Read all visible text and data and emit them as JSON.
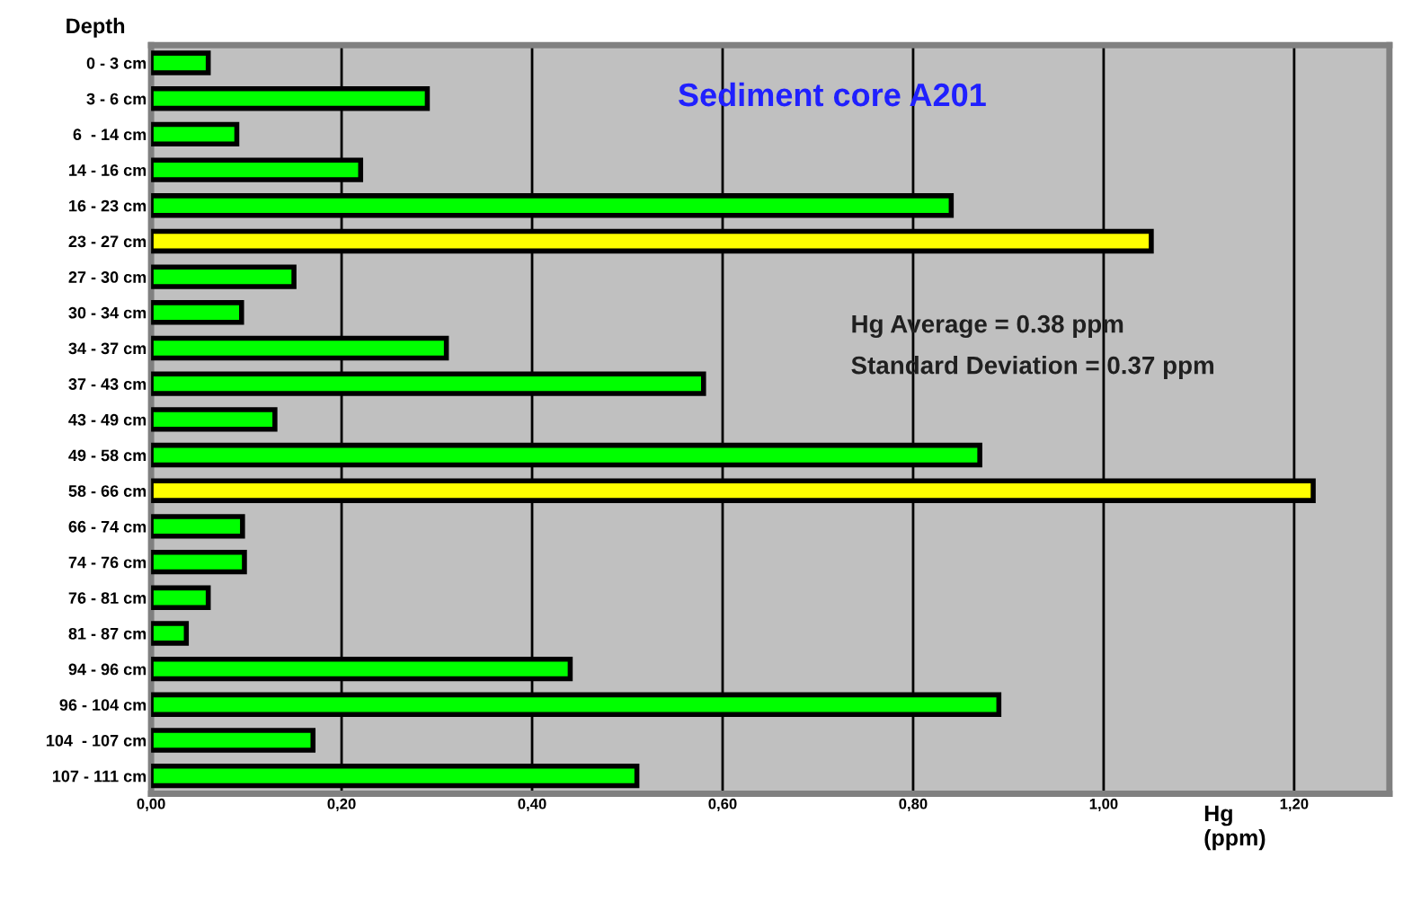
{
  "chart_data": {
    "type": "bar",
    "orientation": "horizontal",
    "title": "Sediment core A201",
    "ylabel": "Depth",
    "xlabel": "Hg\n(ppm)",
    "categories": [
      "0 - 3 cm",
      "3 - 6 cm",
      "6  - 14 cm",
      "14 - 16 cm",
      "16 - 23 cm",
      "23 - 27 cm",
      "27 - 30 cm",
      "30 - 34 cm",
      "34 - 37 cm",
      "37 - 43 cm",
      "43 - 49 cm",
      "49 - 58 cm",
      "58 - 66 cm",
      "66 - 74 cm",
      "74 - 76 cm",
      "76 - 81 cm",
      "81 - 87 cm",
      "94 - 96 cm",
      "96 - 104 cm",
      "104  - 107 cm",
      "107 - 111 cm"
    ],
    "values": [
      0.06,
      0.29,
      0.09,
      0.22,
      0.84,
      1.05,
      0.15,
      0.095,
      0.31,
      0.58,
      0.13,
      0.87,
      1.22,
      0.096,
      0.098,
      0.06,
      0.037,
      0.44,
      0.89,
      0.17,
      0.51
    ],
    "colors": [
      "#00ff00",
      "#00ff00",
      "#00ff00",
      "#00ff00",
      "#00ff00",
      "#ffff00",
      "#00ff00",
      "#00ff00",
      "#00ff00",
      "#00ff00",
      "#00ff00",
      "#00ff00",
      "#ffff00",
      "#00ff00",
      "#00ff00",
      "#00ff00",
      "#00ff00",
      "#00ff00",
      "#00ff00",
      "#00ff00",
      "#00ff00"
    ],
    "xlim": [
      0,
      1.3
    ],
    "xticks": [
      {
        "value": 0,
        "label": "0,00"
      },
      {
        "value": 0.2,
        "label": "0,20"
      },
      {
        "value": 0.4,
        "label": "0,40"
      },
      {
        "value": 0.6,
        "label": "0,60"
      },
      {
        "value": 0.8,
        "label": "0,80"
      },
      {
        "value": 1.0,
        "label": "1,00"
      },
      {
        "value": 1.2,
        "label": "1,20"
      }
    ],
    "grid": "x",
    "annotations": [
      "Hg Average = 0.38 ppm",
      "Standard Deviation = 0.37 ppm"
    ]
  }
}
